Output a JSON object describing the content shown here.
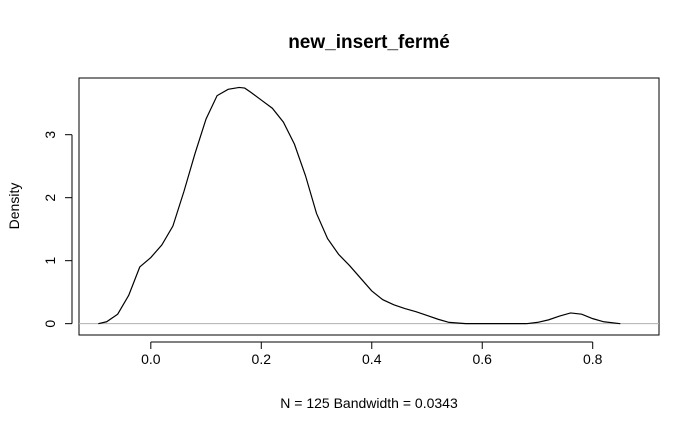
{
  "chart_data": {
    "type": "line",
    "title": "new_insert_fermé",
    "xlabel": "N = 125   Bandwidth = 0.0343",
    "ylabel": "Density",
    "xlim": [
      -0.13,
      0.92
    ],
    "ylim": [
      -0.18,
      3.9
    ],
    "x_ticks": [
      0.0,
      0.2,
      0.4,
      0.6,
      0.8
    ],
    "x_tick_labels": [
      "0.0",
      "0.2",
      "0.4",
      "0.6",
      "0.8"
    ],
    "y_ticks": [
      0,
      1,
      2,
      3
    ],
    "y_tick_labels": [
      "0",
      "1",
      "2",
      "3"
    ],
    "baseline": 0,
    "grid": false,
    "series": [
      {
        "x": [
          -0.095,
          -0.08,
          -0.06,
          -0.04,
          -0.02,
          0.0,
          0.02,
          0.04,
          0.06,
          0.08,
          0.1,
          0.12,
          0.14,
          0.16,
          0.17,
          0.18,
          0.2,
          0.22,
          0.24,
          0.26,
          0.28,
          0.3,
          0.32,
          0.34,
          0.36,
          0.38,
          0.4,
          0.42,
          0.44,
          0.46,
          0.48,
          0.5,
          0.52,
          0.54,
          0.57,
          0.6,
          0.65,
          0.68,
          0.7,
          0.72,
          0.74,
          0.76,
          0.78,
          0.8,
          0.82,
          0.85
        ],
        "y": [
          0.0,
          0.03,
          0.15,
          0.45,
          0.9,
          1.05,
          1.25,
          1.55,
          2.1,
          2.7,
          3.25,
          3.62,
          3.72,
          3.75,
          3.74,
          3.68,
          3.55,
          3.42,
          3.2,
          2.85,
          2.35,
          1.75,
          1.35,
          1.1,
          0.92,
          0.72,
          0.52,
          0.38,
          0.3,
          0.24,
          0.19,
          0.13,
          0.07,
          0.02,
          0.0,
          0.0,
          0.0,
          0.0,
          0.02,
          0.06,
          0.12,
          0.17,
          0.15,
          0.08,
          0.03,
          0.0
        ]
      }
    ]
  }
}
